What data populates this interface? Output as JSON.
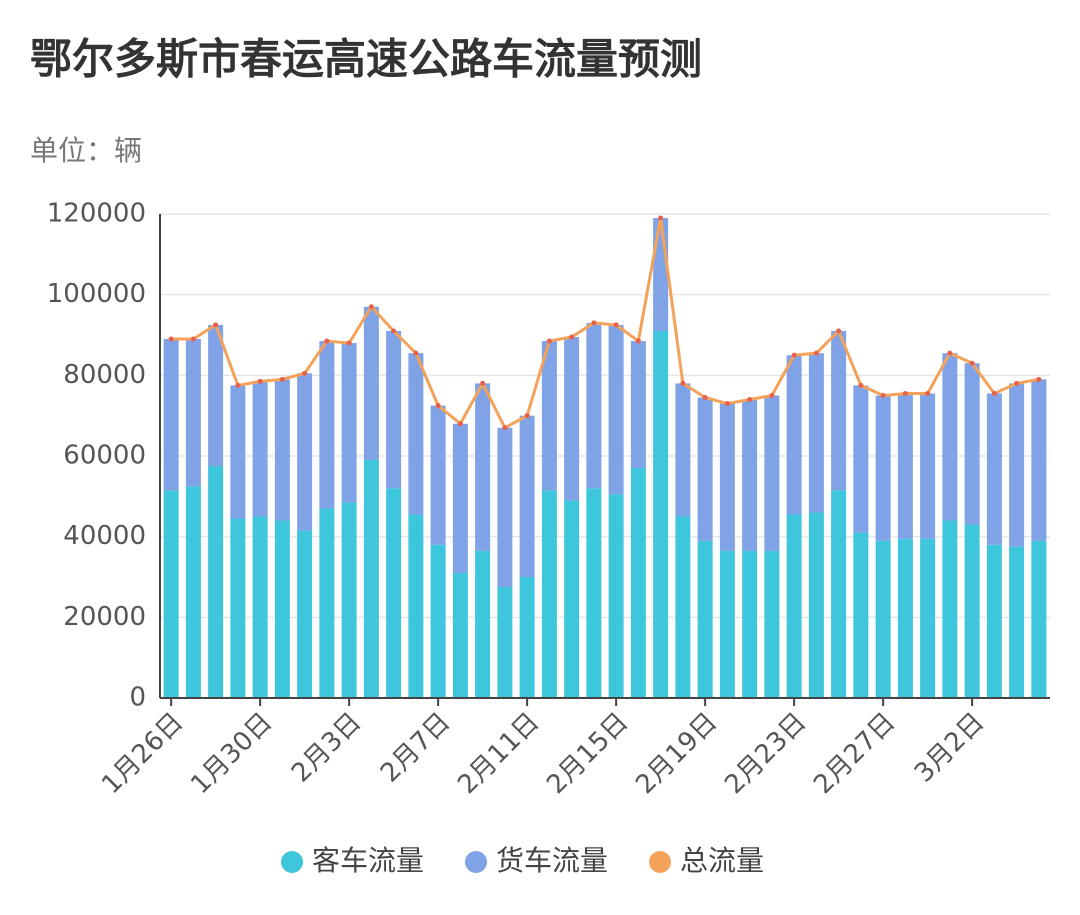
{
  "chart_data": {
    "type": "stacked-bar-line",
    "title": "鄂尔多斯市春运高速公路车流量预测",
    "subtitle": "单位：辆",
    "categories": [
      "1月26日",
      null,
      null,
      null,
      "1月30日",
      null,
      null,
      null,
      "2月3日",
      null,
      null,
      null,
      "2月7日",
      null,
      null,
      null,
      "2月11日",
      null,
      null,
      null,
      "2月15日",
      null,
      null,
      null,
      "2月19日",
      null,
      null,
      null,
      "2月23日",
      null,
      null,
      null,
      "2月27日",
      null,
      null,
      null,
      "3月2日",
      null,
      null,
      null
    ],
    "series": [
      {
        "name": "客车流量",
        "color": "#3ec6dc",
        "values": [
          51500,
          52500,
          57500,
          44500,
          45000,
          44000,
          41500,
          47000,
          48500,
          59000,
          52000,
          45500,
          38000,
          31000,
          36500,
          27500,
          30000,
          51500,
          49000,
          52000,
          50500,
          57000,
          91000,
          45000,
          39000,
          36500,
          36500,
          36500,
          45500,
          46000,
          51500,
          41000,
          39000,
          39500,
          39500,
          44000,
          43000,
          38000,
          37500,
          39000
        ]
      },
      {
        "name": "货车流量",
        "color": "#7fa3e6",
        "values": [
          37500,
          36500,
          35000,
          33000,
          33500,
          35000,
          39000,
          41500,
          39500,
          38000,
          39000,
          40000,
          34500,
          37000,
          41500,
          39500,
          40000,
          37000,
          40500,
          41000,
          42000,
          31500,
          28000,
          33000,
          35500,
          36500,
          37500,
          38500,
          39500,
          39500,
          39500,
          36500,
          36000,
          36000,
          36000,
          41500,
          40000,
          37500,
          40500,
          40000
        ]
      },
      {
        "name": "总流量",
        "color": "#f4a259",
        "type": "line",
        "values": [
          89000,
          89000,
          92500,
          77500,
          78500,
          79000,
          80500,
          88500,
          88000,
          97000,
          91000,
          85500,
          72500,
          68000,
          78000,
          67000,
          70000,
          88500,
          89500,
          93000,
          92500,
          88500,
          119000,
          78000,
          74500,
          73000,
          74000,
          75000,
          85000,
          85500,
          91000,
          77500,
          75000,
          75500,
          75500,
          85500,
          83000,
          75500,
          78000,
          79000
        ]
      }
    ],
    "ylim": [
      0,
      120000
    ],
    "yticks": [
      0,
      20000,
      40000,
      60000,
      80000,
      100000,
      120000
    ],
    "grid": true,
    "legend": "bottom"
  }
}
